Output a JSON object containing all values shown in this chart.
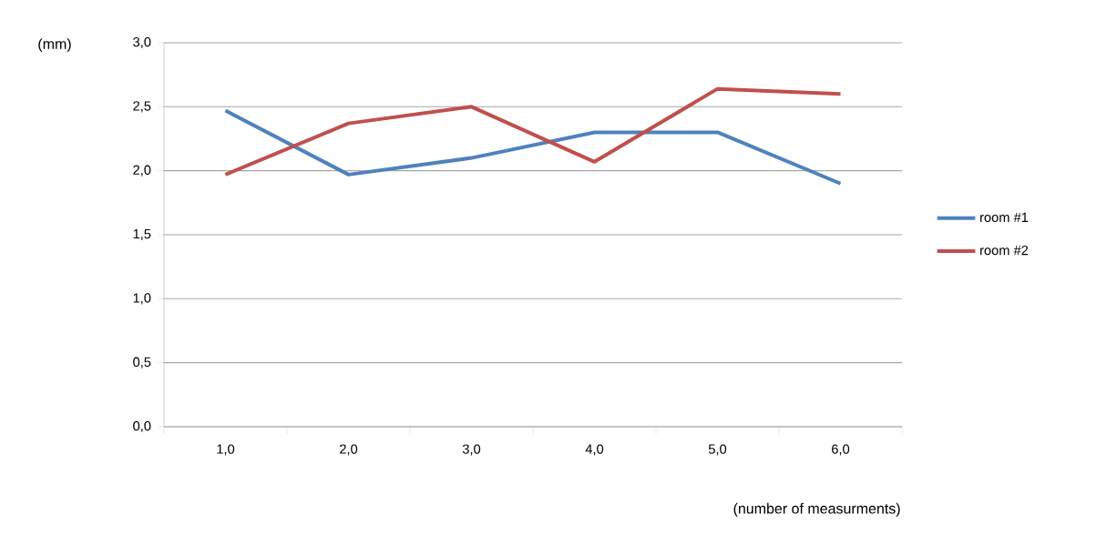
{
  "chart_data": {
    "type": "line",
    "xlabel": "(number of measurments)",
    "ylabel": "(mm)",
    "categories": [
      "1,0",
      "2,0",
      "3,0",
      "4,0",
      "5,0",
      "6,0"
    ],
    "series": [
      {
        "name": "room #1",
        "color": "#4f81bd",
        "values": [
          2.47,
          1.97,
          2.1,
          2.3,
          2.3,
          1.9
        ]
      },
      {
        "name": "room #2",
        "color": "#c0504d",
        "values": [
          1.97,
          2.37,
          2.5,
          2.07,
          2.64,
          2.6
        ]
      }
    ],
    "ylim": [
      0,
      3
    ],
    "yticks": [
      {
        "value": 0,
        "label": "0,0"
      },
      {
        "value": 0.5,
        "label": "0,5"
      },
      {
        "value": 1,
        "label": "1,0"
      },
      {
        "value": 1.5,
        "label": "1,5"
      },
      {
        "value": 2,
        "label": "2,0"
      },
      {
        "value": 2.5,
        "label": "2,5"
      },
      {
        "value": 3,
        "label": "3,0"
      }
    ],
    "grid": "y",
    "legend": "right",
    "marker": "none",
    "line_style": "solid"
  }
}
